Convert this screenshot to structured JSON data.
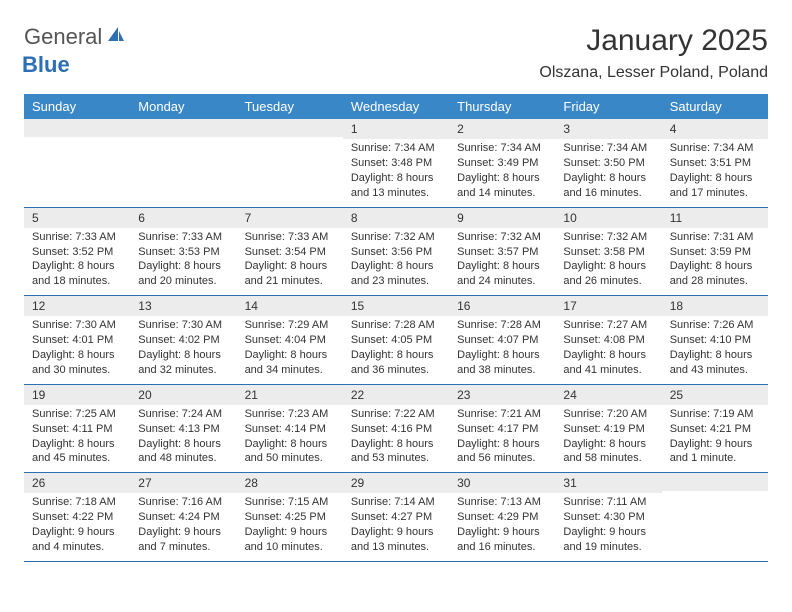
{
  "logo": {
    "general": "General",
    "blue": "Blue",
    "sail_color": "#2d6fb4"
  },
  "header": {
    "title": "January 2025",
    "location": "Olszana, Lesser Poland, Poland"
  },
  "colors": {
    "header_row_bg": "#3a87c8",
    "header_row_text": "#ffffff",
    "daynum_bg": "#ececec",
    "row_border": "#2d6fb4",
    "text": "#333333"
  },
  "daysOfWeek": [
    "Sunday",
    "Monday",
    "Tuesday",
    "Wednesday",
    "Thursday",
    "Friday",
    "Saturday"
  ],
  "weeks": [
    [
      {
        "n": "",
        "sunrise": "",
        "sunset": "",
        "daylight": ""
      },
      {
        "n": "",
        "sunrise": "",
        "sunset": "",
        "daylight": ""
      },
      {
        "n": "",
        "sunrise": "",
        "sunset": "",
        "daylight": ""
      },
      {
        "n": "1",
        "sunrise": "Sunrise: 7:34 AM",
        "sunset": "Sunset: 3:48 PM",
        "daylight": "Daylight: 8 hours and 13 minutes."
      },
      {
        "n": "2",
        "sunrise": "Sunrise: 7:34 AM",
        "sunset": "Sunset: 3:49 PM",
        "daylight": "Daylight: 8 hours and 14 minutes."
      },
      {
        "n": "3",
        "sunrise": "Sunrise: 7:34 AM",
        "sunset": "Sunset: 3:50 PM",
        "daylight": "Daylight: 8 hours and 16 minutes."
      },
      {
        "n": "4",
        "sunrise": "Sunrise: 7:34 AM",
        "sunset": "Sunset: 3:51 PM",
        "daylight": "Daylight: 8 hours and 17 minutes."
      }
    ],
    [
      {
        "n": "5",
        "sunrise": "Sunrise: 7:33 AM",
        "sunset": "Sunset: 3:52 PM",
        "daylight": "Daylight: 8 hours and 18 minutes."
      },
      {
        "n": "6",
        "sunrise": "Sunrise: 7:33 AM",
        "sunset": "Sunset: 3:53 PM",
        "daylight": "Daylight: 8 hours and 20 minutes."
      },
      {
        "n": "7",
        "sunrise": "Sunrise: 7:33 AM",
        "sunset": "Sunset: 3:54 PM",
        "daylight": "Daylight: 8 hours and 21 minutes."
      },
      {
        "n": "8",
        "sunrise": "Sunrise: 7:32 AM",
        "sunset": "Sunset: 3:56 PM",
        "daylight": "Daylight: 8 hours and 23 minutes."
      },
      {
        "n": "9",
        "sunrise": "Sunrise: 7:32 AM",
        "sunset": "Sunset: 3:57 PM",
        "daylight": "Daylight: 8 hours and 24 minutes."
      },
      {
        "n": "10",
        "sunrise": "Sunrise: 7:32 AM",
        "sunset": "Sunset: 3:58 PM",
        "daylight": "Daylight: 8 hours and 26 minutes."
      },
      {
        "n": "11",
        "sunrise": "Sunrise: 7:31 AM",
        "sunset": "Sunset: 3:59 PM",
        "daylight": "Daylight: 8 hours and 28 minutes."
      }
    ],
    [
      {
        "n": "12",
        "sunrise": "Sunrise: 7:30 AM",
        "sunset": "Sunset: 4:01 PM",
        "daylight": "Daylight: 8 hours and 30 minutes."
      },
      {
        "n": "13",
        "sunrise": "Sunrise: 7:30 AM",
        "sunset": "Sunset: 4:02 PM",
        "daylight": "Daylight: 8 hours and 32 minutes."
      },
      {
        "n": "14",
        "sunrise": "Sunrise: 7:29 AM",
        "sunset": "Sunset: 4:04 PM",
        "daylight": "Daylight: 8 hours and 34 minutes."
      },
      {
        "n": "15",
        "sunrise": "Sunrise: 7:28 AM",
        "sunset": "Sunset: 4:05 PM",
        "daylight": "Daylight: 8 hours and 36 minutes."
      },
      {
        "n": "16",
        "sunrise": "Sunrise: 7:28 AM",
        "sunset": "Sunset: 4:07 PM",
        "daylight": "Daylight: 8 hours and 38 minutes."
      },
      {
        "n": "17",
        "sunrise": "Sunrise: 7:27 AM",
        "sunset": "Sunset: 4:08 PM",
        "daylight": "Daylight: 8 hours and 41 minutes."
      },
      {
        "n": "18",
        "sunrise": "Sunrise: 7:26 AM",
        "sunset": "Sunset: 4:10 PM",
        "daylight": "Daylight: 8 hours and 43 minutes."
      }
    ],
    [
      {
        "n": "19",
        "sunrise": "Sunrise: 7:25 AM",
        "sunset": "Sunset: 4:11 PM",
        "daylight": "Daylight: 8 hours and 45 minutes."
      },
      {
        "n": "20",
        "sunrise": "Sunrise: 7:24 AM",
        "sunset": "Sunset: 4:13 PM",
        "daylight": "Daylight: 8 hours and 48 minutes."
      },
      {
        "n": "21",
        "sunrise": "Sunrise: 7:23 AM",
        "sunset": "Sunset: 4:14 PM",
        "daylight": "Daylight: 8 hours and 50 minutes."
      },
      {
        "n": "22",
        "sunrise": "Sunrise: 7:22 AM",
        "sunset": "Sunset: 4:16 PM",
        "daylight": "Daylight: 8 hours and 53 minutes."
      },
      {
        "n": "23",
        "sunrise": "Sunrise: 7:21 AM",
        "sunset": "Sunset: 4:17 PM",
        "daylight": "Daylight: 8 hours and 56 minutes."
      },
      {
        "n": "24",
        "sunrise": "Sunrise: 7:20 AM",
        "sunset": "Sunset: 4:19 PM",
        "daylight": "Daylight: 8 hours and 58 minutes."
      },
      {
        "n": "25",
        "sunrise": "Sunrise: 7:19 AM",
        "sunset": "Sunset: 4:21 PM",
        "daylight": "Daylight: 9 hours and 1 minute."
      }
    ],
    [
      {
        "n": "26",
        "sunrise": "Sunrise: 7:18 AM",
        "sunset": "Sunset: 4:22 PM",
        "daylight": "Daylight: 9 hours and 4 minutes."
      },
      {
        "n": "27",
        "sunrise": "Sunrise: 7:16 AM",
        "sunset": "Sunset: 4:24 PM",
        "daylight": "Daylight: 9 hours and 7 minutes."
      },
      {
        "n": "28",
        "sunrise": "Sunrise: 7:15 AM",
        "sunset": "Sunset: 4:25 PM",
        "daylight": "Daylight: 9 hours and 10 minutes."
      },
      {
        "n": "29",
        "sunrise": "Sunrise: 7:14 AM",
        "sunset": "Sunset: 4:27 PM",
        "daylight": "Daylight: 9 hours and 13 minutes."
      },
      {
        "n": "30",
        "sunrise": "Sunrise: 7:13 AM",
        "sunset": "Sunset: 4:29 PM",
        "daylight": "Daylight: 9 hours and 16 minutes."
      },
      {
        "n": "31",
        "sunrise": "Sunrise: 7:11 AM",
        "sunset": "Sunset: 4:30 PM",
        "daylight": "Daylight: 9 hours and 19 minutes."
      },
      {
        "n": "",
        "sunrise": "",
        "sunset": "",
        "daylight": ""
      }
    ]
  ]
}
